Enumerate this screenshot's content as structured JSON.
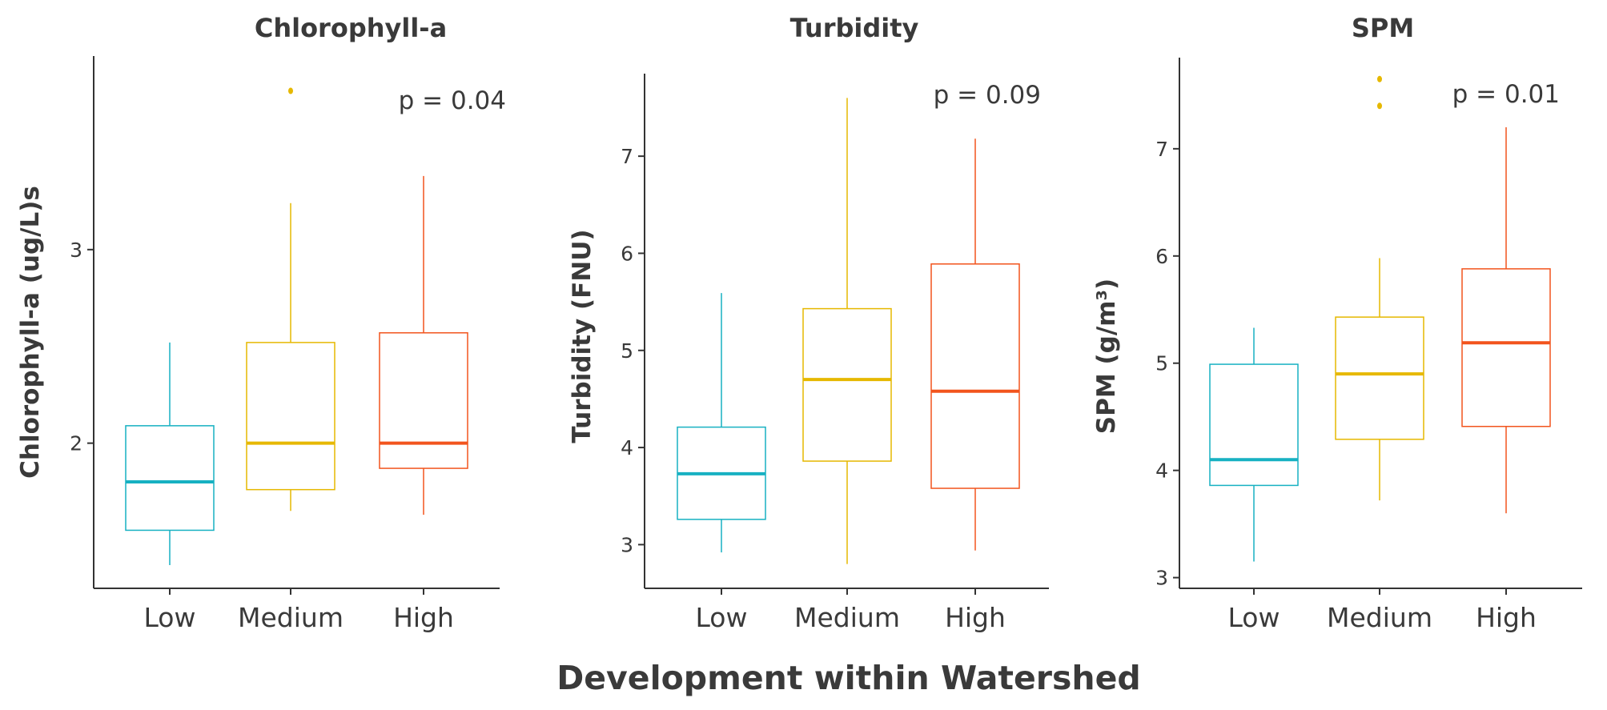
{
  "figure": {
    "xlabel": "Development within Watershed",
    "colors": {
      "Low": "#17b1c2",
      "Medium": "#e6b800",
      "High": "#f2541d"
    },
    "axis_color": "#333333",
    "text_color": "#3a3a3a"
  },
  "chart_data": [
    {
      "type": "box",
      "title": "Chlorophyll-a",
      "ylabel": "Chlorophyll-a (ug/L)s",
      "p_value": "p = 0.04",
      "ylim": [
        1.25,
        4.0
      ],
      "yticks": [
        2,
        3
      ],
      "categories": [
        "Low",
        "Medium",
        "High"
      ],
      "boxes": [
        {
          "name": "Low",
          "whisker_low": 1.37,
          "q1": 1.55,
          "median": 1.8,
          "q3": 2.09,
          "whisker_high": 2.52,
          "outliers": []
        },
        {
          "name": "Medium",
          "whisker_low": 1.65,
          "q1": 1.76,
          "median": 2.0,
          "q3": 2.52,
          "whisker_high": 3.24,
          "outliers": [
            3.82
          ]
        },
        {
          "name": "High",
          "whisker_low": 1.63,
          "q1": 1.87,
          "median": 2.0,
          "q3": 2.57,
          "whisker_high": 3.38,
          "outliers": []
        }
      ]
    },
    {
      "type": "box",
      "title": "Turbidity",
      "ylabel": "Turbidity (FNU)",
      "p_value": "p = 0.09",
      "ylim": [
        2.55,
        7.85
      ],
      "yticks": [
        3,
        4,
        5,
        6,
        7
      ],
      "categories": [
        "Low",
        "Medium",
        "High"
      ],
      "boxes": [
        {
          "name": "Low",
          "whisker_low": 2.92,
          "q1": 3.26,
          "median": 3.73,
          "q3": 4.21,
          "whisker_high": 5.59,
          "outliers": []
        },
        {
          "name": "Medium",
          "whisker_low": 2.8,
          "q1": 3.86,
          "median": 4.7,
          "q3": 5.43,
          "whisker_high": 7.6,
          "outliers": []
        },
        {
          "name": "High",
          "whisker_low": 2.94,
          "q1": 3.58,
          "median": 4.58,
          "q3": 5.89,
          "whisker_high": 7.18,
          "outliers": []
        }
      ]
    },
    {
      "type": "box",
      "title": "SPM",
      "ylabel": "SPM (g/m³)",
      "p_value": "p = 0.01",
      "ylim": [
        2.9,
        7.85
      ],
      "yticks": [
        3,
        4,
        5,
        6,
        7
      ],
      "categories": [
        "Low",
        "Medium",
        "High"
      ],
      "boxes": [
        {
          "name": "Low",
          "whisker_low": 3.15,
          "q1": 3.86,
          "median": 4.1,
          "q3": 4.99,
          "whisker_high": 5.33,
          "outliers": []
        },
        {
          "name": "Medium",
          "whisker_low": 3.72,
          "q1": 4.29,
          "median": 4.9,
          "q3": 5.43,
          "whisker_high": 5.98,
          "outliers": [
            7.4,
            7.65
          ]
        },
        {
          "name": "High",
          "whisker_low": 3.6,
          "q1": 4.41,
          "median": 5.19,
          "q3": 5.88,
          "whisker_high": 7.2,
          "outliers": []
        }
      ]
    }
  ]
}
